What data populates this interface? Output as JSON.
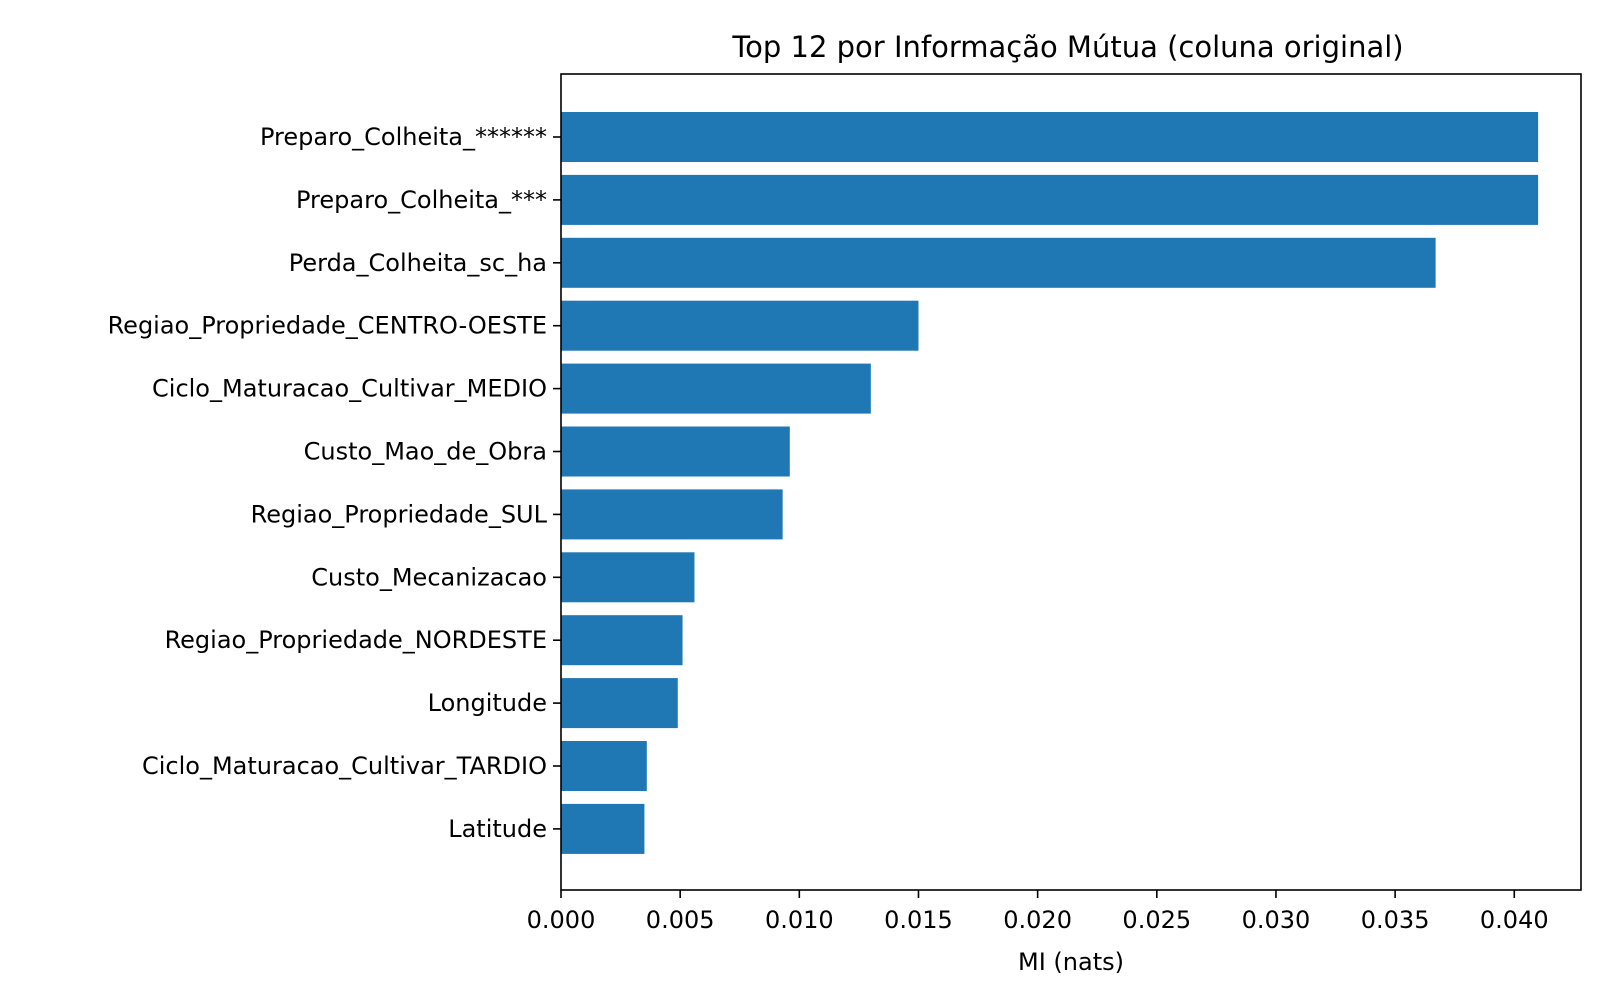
{
  "chart_data": {
    "type": "bar",
    "orientation": "horizontal",
    "title": "Top 12 por Informação Mútua (coluna original)",
    "xlabel": "MI (nats)",
    "ylabel": "",
    "xlim": [
      0,
      0.0428
    ],
    "x_ticks": [
      "0.000",
      "0.005",
      "0.010",
      "0.015",
      "0.020",
      "0.025",
      "0.030",
      "0.035",
      "0.040"
    ],
    "bar_color": "#1f77b4",
    "grid": false,
    "categories": [
      "Preparo_Colheita_******",
      "Preparo_Colheita_***",
      "Perda_Colheita_sc_ha",
      "Regiao_Propriedade_CENTRO-OESTE",
      "Ciclo_Maturacao_Cultivar_MEDIO",
      "Custo_Mao_de_Obra",
      "Regiao_Propriedade_SUL",
      "Custo_Mecanizacao",
      "Regiao_Propriedade_NORDESTE",
      "Longitude",
      "Ciclo_Maturacao_Cultivar_TARDIO",
      "Latitude"
    ],
    "values": [
      0.041,
      0.041,
      0.0367,
      0.015,
      0.013,
      0.0096,
      0.0093,
      0.0056,
      0.0051,
      0.0049,
      0.0036,
      0.0035
    ]
  }
}
